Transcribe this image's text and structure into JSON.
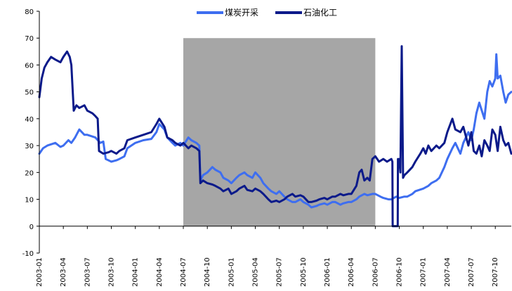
{
  "chart_data": {
    "type": "line",
    "title": "",
    "xlabel": "",
    "ylabel": "",
    "ylim": [
      -10,
      80
    ],
    "yticks": [
      -10,
      0,
      10,
      20,
      30,
      40,
      50,
      60,
      70,
      80
    ],
    "xlim": [
      "2003-01",
      "2007-12"
    ],
    "x_tick_labels": [
      "2003-01",
      "2003-04",
      "2003-07",
      "2003-10",
      "2004-01",
      "2004-04",
      "2004-07",
      "2004-10",
      "2005-01",
      "2005-04",
      "2005-07",
      "2005-10",
      "2006-01",
      "2006-04",
      "2006-07",
      "2006-10",
      "2007-01",
      "2007-04",
      "2007-07",
      "2007-10"
    ],
    "grid": false,
    "legend_position": "top",
    "shaded_region": {
      "from": "2004-07",
      "to": "2006-07",
      "color": "#a6a6a6"
    },
    "series": [
      {
        "name": "煤炭开采",
        "color": "#3e6ef0",
        "points": [
          [
            "2003-01",
            27
          ],
          [
            "2003-01-15",
            29
          ],
          [
            "2003-02",
            30
          ],
          [
            "2003-03",
            31
          ],
          [
            "2003-03-20",
            29.5
          ],
          [
            "2003-04",
            30
          ],
          [
            "2003-04-20",
            32
          ],
          [
            "2003-05",
            31
          ],
          [
            "2003-05-15",
            33
          ],
          [
            "2003-06",
            36
          ],
          [
            "2003-06-20",
            34
          ],
          [
            "2003-07",
            34
          ],
          [
            "2003-08",
            33
          ],
          [
            "2003-08-20",
            31
          ],
          [
            "2003-09",
            31.5
          ],
          [
            "2003-09-10",
            25
          ],
          [
            "2003-10",
            24
          ],
          [
            "2003-10-20",
            24.5
          ],
          [
            "2003-11",
            25
          ],
          [
            "2003-11-20",
            26
          ],
          [
            "2003-12",
            29
          ],
          [
            "2004-01",
            31
          ],
          [
            "2004-02",
            32
          ],
          [
            "2004-03",
            32.5
          ],
          [
            "2004-03-20",
            35
          ],
          [
            "2004-04",
            38
          ],
          [
            "2004-04-20",
            36
          ],
          [
            "2004-05",
            33
          ],
          [
            "2004-05-20",
            31
          ],
          [
            "2004-06",
            30
          ],
          [
            "2004-06-20",
            31
          ],
          [
            "2004-07",
            30
          ],
          [
            "2004-07-20",
            33
          ],
          [
            "2004-08",
            32
          ],
          [
            "2004-08-20",
            31
          ],
          [
            "2004-09",
            30
          ],
          [
            "2004-09-05",
            17
          ],
          [
            "2004-09-15",
            19
          ],
          [
            "2004-10",
            20
          ],
          [
            "2004-10-20",
            22
          ],
          [
            "2004-11",
            21
          ],
          [
            "2004-11-20",
            20
          ],
          [
            "2004-12",
            18
          ],
          [
            "2004-12-20",
            17
          ],
          [
            "2005-01",
            16
          ],
          [
            "2005-01-20",
            18
          ],
          [
            "2005-02",
            19
          ],
          [
            "2005-02-20",
            20
          ],
          [
            "2005-03",
            19
          ],
          [
            "2005-03-20",
            18
          ],
          [
            "2005-04",
            20
          ],
          [
            "2005-04-20",
            18
          ],
          [
            "2005-05",
            16
          ],
          [
            "2005-05-20",
            14
          ],
          [
            "2005-06",
            13
          ],
          [
            "2005-06-20",
            12
          ],
          [
            "2005-07",
            13
          ],
          [
            "2005-07-20",
            11
          ],
          [
            "2005-08",
            10
          ],
          [
            "2005-08-20",
            9
          ],
          [
            "2005-09",
            9
          ],
          [
            "2005-09-20",
            10
          ],
          [
            "2005-10",
            9
          ],
          [
            "2005-10-20",
            8
          ],
          [
            "2005-11",
            7
          ],
          [
            "2005-11-20",
            7.5
          ],
          [
            "2005-12",
            8
          ],
          [
            "2005-12-20",
            8.5
          ],
          [
            "2006-01",
            8
          ],
          [
            "2006-01-20",
            9
          ],
          [
            "2006-02",
            9
          ],
          [
            "2006-02-20",
            8
          ],
          [
            "2006-03",
            8.5
          ],
          [
            "2006-03-20",
            9
          ],
          [
            "2006-04",
            9
          ],
          [
            "2006-04-20",
            10
          ],
          [
            "2006-05",
            11
          ],
          [
            "2006-05-20",
            12
          ],
          [
            "2006-06",
            11.5
          ],
          [
            "2006-06-20",
            12
          ],
          [
            "2006-07",
            12
          ],
          [
            "2006-07-20",
            11
          ],
          [
            "2006-08",
            10.5
          ],
          [
            "2006-08-20",
            10
          ],
          [
            "2006-09",
            10
          ],
          [
            "2006-09-20",
            11
          ],
          [
            "2006-10",
            10.5
          ],
          [
            "2006-10-20",
            11
          ],
          [
            "2006-11",
            11
          ],
          [
            "2006-11-20",
            12
          ],
          [
            "2006-12",
            13
          ],
          [
            "2007-01",
            14
          ],
          [
            "2007-01-20",
            15
          ],
          [
            "2007-02",
            16
          ],
          [
            "2007-02-20",
            17
          ],
          [
            "2007-03",
            18
          ],
          [
            "2007-03-20",
            22
          ],
          [
            "2007-04",
            25
          ],
          [
            "2007-04-20",
            29
          ],
          [
            "2007-05",
            31
          ],
          [
            "2007-05-20",
            27
          ],
          [
            "2007-06",
            31
          ],
          [
            "2007-06-20",
            35
          ],
          [
            "2007-07",
            32
          ],
          [
            "2007-07-10",
            36
          ],
          [
            "2007-07-20",
            42
          ],
          [
            "2007-08",
            46
          ],
          [
            "2007-08-20",
            40
          ],
          [
            "2007-09",
            50
          ],
          [
            "2007-09-10",
            54
          ],
          [
            "2007-09-20",
            52
          ],
          [
            "2007-10",
            55
          ],
          [
            "2007-10-05",
            64
          ],
          [
            "2007-10-10",
            55
          ],
          [
            "2007-10-20",
            56
          ],
          [
            "2007-11",
            50
          ],
          [
            "2007-11-10",
            46
          ],
          [
            "2007-11-20",
            49
          ],
          [
            "2007-12",
            50
          ]
        ]
      },
      {
        "name": "石油化工",
        "color": "#0b1a8a",
        "points": [
          [
            "2003-01",
            48
          ],
          [
            "2003-01-10",
            55
          ],
          [
            "2003-01-20",
            59
          ],
          [
            "2003-02",
            61
          ],
          [
            "2003-02-15",
            63
          ],
          [
            "2003-03",
            62
          ],
          [
            "2003-03-20",
            61
          ],
          [
            "2003-04",
            63
          ],
          [
            "2003-04-15",
            65
          ],
          [
            "2003-04-25",
            63
          ],
          [
            "2003-05",
            60
          ],
          [
            "2003-05-10",
            43
          ],
          [
            "2003-05-20",
            45
          ],
          [
            "2003-06",
            44
          ],
          [
            "2003-06-20",
            45
          ],
          [
            "2003-07",
            43
          ],
          [
            "2003-07-20",
            42
          ],
          [
            "2003-08",
            41
          ],
          [
            "2003-08-10",
            40
          ],
          [
            "2003-08-15",
            28
          ],
          [
            "2003-09",
            27
          ],
          [
            "2003-09-20",
            27.5
          ],
          [
            "2003-10",
            28
          ],
          [
            "2003-10-20",
            27
          ],
          [
            "2003-11",
            28
          ],
          [
            "2003-11-20",
            29
          ],
          [
            "2003-12",
            32
          ],
          [
            "2004-01",
            33
          ],
          [
            "2004-02",
            34
          ],
          [
            "2004-03",
            35
          ],
          [
            "2004-03-20",
            38
          ],
          [
            "2004-04",
            40
          ],
          [
            "2004-04-20",
            37
          ],
          [
            "2004-05",
            33
          ],
          [
            "2004-05-20",
            32
          ],
          [
            "2004-06",
            31
          ],
          [
            "2004-06-20",
            30
          ],
          [
            "2004-07",
            31
          ],
          [
            "2004-07-20",
            29
          ],
          [
            "2004-08",
            30
          ],
          [
            "2004-08-20",
            29
          ],
          [
            "2004-09",
            28
          ],
          [
            "2004-09-05",
            16
          ],
          [
            "2004-09-15",
            17
          ],
          [
            "2004-10",
            16
          ],
          [
            "2004-10-20",
            15.5
          ],
          [
            "2004-11",
            15
          ],
          [
            "2004-11-20",
            14
          ],
          [
            "2004-12",
            13
          ],
          [
            "2004-12-20",
            14
          ],
          [
            "2005-01",
            12
          ],
          [
            "2005-01-20",
            13
          ],
          [
            "2005-02",
            14
          ],
          [
            "2005-02-20",
            15
          ],
          [
            "2005-03",
            13.5
          ],
          [
            "2005-03-20",
            13
          ],
          [
            "2005-04",
            14
          ],
          [
            "2005-04-20",
            13
          ],
          [
            "2005-05",
            12
          ],
          [
            "2005-05-20",
            10
          ],
          [
            "2005-06",
            9
          ],
          [
            "2005-06-20",
            9.5
          ],
          [
            "2005-07",
            9
          ],
          [
            "2005-07-20",
            10
          ],
          [
            "2005-08",
            11
          ],
          [
            "2005-08-20",
            12
          ],
          [
            "2005-09",
            11
          ],
          [
            "2005-09-20",
            11.5
          ],
          [
            "2005-10",
            11
          ],
          [
            "2005-10-20",
            9
          ],
          [
            "2005-11",
            9
          ],
          [
            "2005-11-20",
            9.5
          ],
          [
            "2005-12",
            10
          ],
          [
            "2005-12-20",
            10.5
          ],
          [
            "2006-01",
            10
          ],
          [
            "2006-01-20",
            11
          ],
          [
            "2006-02",
            11
          ],
          [
            "2006-02-20",
            12
          ],
          [
            "2006-03",
            11.5
          ],
          [
            "2006-03-20",
            12
          ],
          [
            "2006-04",
            12
          ],
          [
            "2006-04-20",
            15
          ],
          [
            "2006-05",
            20
          ],
          [
            "2006-05-10",
            21
          ],
          [
            "2006-05-20",
            17
          ],
          [
            "2006-06",
            18
          ],
          [
            "2006-06-10",
            17
          ],
          [
            "2006-06-20",
            25
          ],
          [
            "2006-07",
            26
          ],
          [
            "2006-07-15",
            24
          ],
          [
            "2006-08",
            25
          ],
          [
            "2006-08-15",
            24
          ],
          [
            "2006-09",
            25
          ],
          [
            "2006-09-05",
            24
          ],
          [
            "2006-09-06",
            0
          ],
          [
            "2006-09-25",
            0
          ],
          [
            "2006-09-26",
            25
          ],
          [
            "2006-10",
            25
          ],
          [
            "2006-10-05",
            20
          ],
          [
            "2006-10-10",
            67
          ],
          [
            "2006-10-15",
            18
          ],
          [
            "2006-10-20",
            19
          ],
          [
            "2006-11",
            20
          ],
          [
            "2006-11-20",
            22
          ],
          [
            "2006-12",
            24
          ],
          [
            "2006-12-20",
            27
          ],
          [
            "2007-01",
            29
          ],
          [
            "2007-01-10",
            27
          ],
          [
            "2007-01-20",
            30
          ],
          [
            "2007-02",
            28
          ],
          [
            "2007-02-20",
            30
          ],
          [
            "2007-03",
            29
          ],
          [
            "2007-03-20",
            31
          ],
          [
            "2007-04",
            35
          ],
          [
            "2007-04-20",
            40
          ],
          [
            "2007-05",
            36
          ],
          [
            "2007-05-20",
            35
          ],
          [
            "2007-06",
            37
          ],
          [
            "2007-06-20",
            30
          ],
          [
            "2007-07",
            35
          ],
          [
            "2007-07-10",
            28
          ],
          [
            "2007-07-20",
            27
          ],
          [
            "2007-08",
            30
          ],
          [
            "2007-08-10",
            26
          ],
          [
            "2007-08-20",
            32
          ],
          [
            "2007-09",
            30
          ],
          [
            "2007-09-10",
            28
          ],
          [
            "2007-09-20",
            36
          ],
          [
            "2007-10",
            34
          ],
          [
            "2007-10-10",
            28
          ],
          [
            "2007-10-20",
            37
          ],
          [
            "2007-11",
            32
          ],
          [
            "2007-11-10",
            30
          ],
          [
            "2007-11-20",
            31
          ],
          [
            "2007-12",
            27
          ]
        ]
      }
    ]
  }
}
